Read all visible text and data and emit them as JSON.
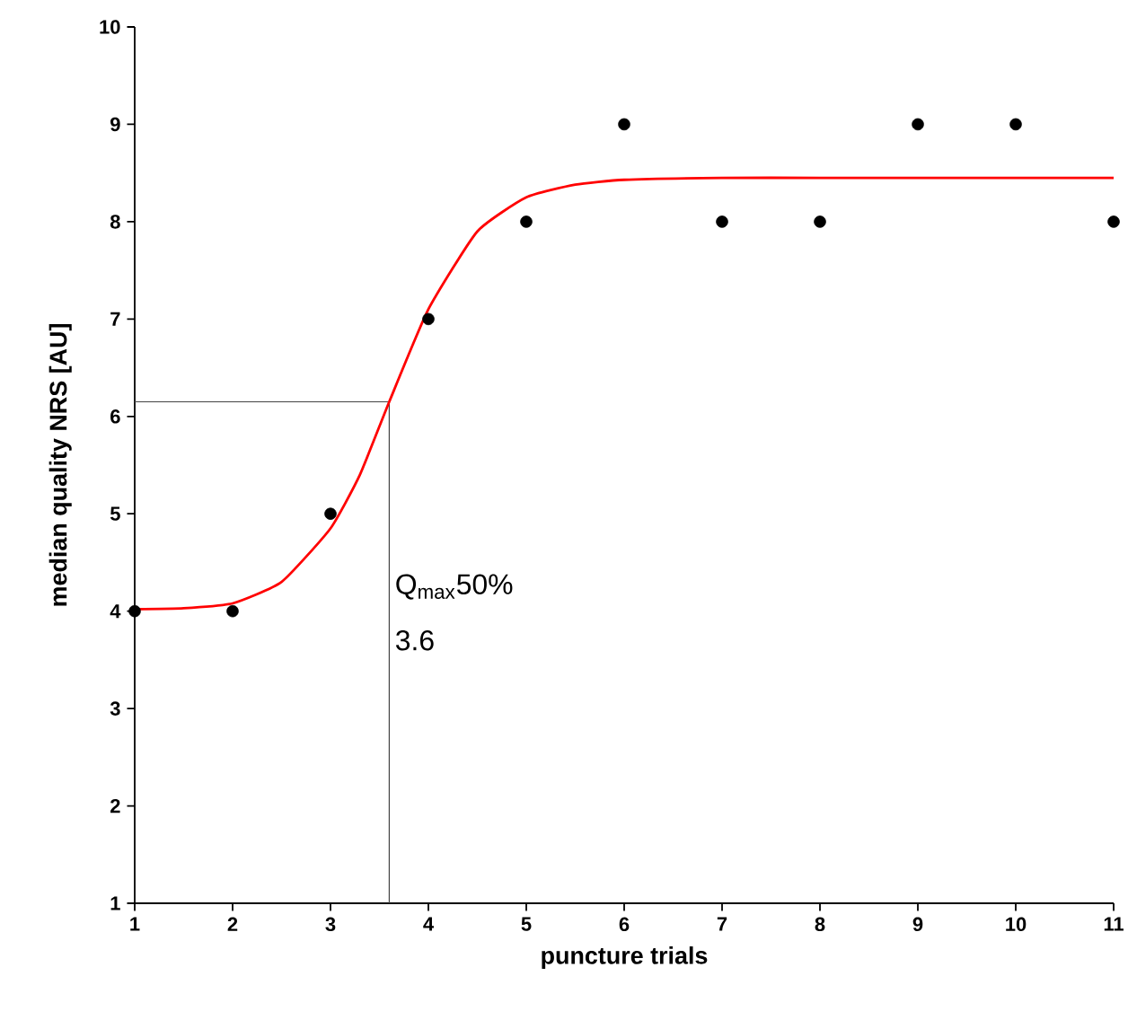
{
  "chart_data": {
    "type": "scatter",
    "xlabel": "puncture trials",
    "ylabel": "median quality NRS [AU]",
    "xlim": [
      1,
      11
    ],
    "ylim": [
      1,
      10
    ],
    "xticks": [
      1,
      2,
      3,
      4,
      5,
      6,
      7,
      8,
      9,
      10,
      11
    ],
    "yticks": [
      1,
      2,
      3,
      4,
      5,
      6,
      7,
      8,
      9,
      10
    ],
    "grid": false,
    "series": [
      {
        "marker": "circle",
        "color": "#000000",
        "x": [
          1,
          2,
          3,
          4,
          5,
          6,
          7,
          8,
          9,
          10,
          11
        ],
        "values": [
          4,
          4,
          5,
          7,
          8,
          9,
          8,
          8,
          9,
          9,
          8
        ]
      },
      {
        "type": "line",
        "marker": "none",
        "color": "#ff0000",
        "x": [
          1,
          1.5,
          2,
          2.5,
          3,
          3.3,
          3.6,
          4,
          4.5,
          5,
          5.5,
          6,
          7,
          8,
          9,
          10,
          11
        ],
        "values": [
          4.02,
          4.03,
          4.08,
          4.3,
          4.85,
          5.4,
          6.15,
          7.1,
          7.9,
          8.25,
          8.38,
          8.43,
          8.45,
          8.45,
          8.45,
          8.45,
          8.45
        ]
      }
    ],
    "ref_lines": [
      {
        "axis": "x",
        "value": 3.6,
        "color": "#444444"
      },
      {
        "axis": "y",
        "value": 6.15,
        "color": "#444444"
      }
    ],
    "annotations": [
      {
        "text": "Q$_{max}$50%",
        "x": 3.6,
        "y": 4.25
      },
      {
        "text": "3.6",
        "x": 3.6,
        "y": 3.7
      }
    ]
  }
}
